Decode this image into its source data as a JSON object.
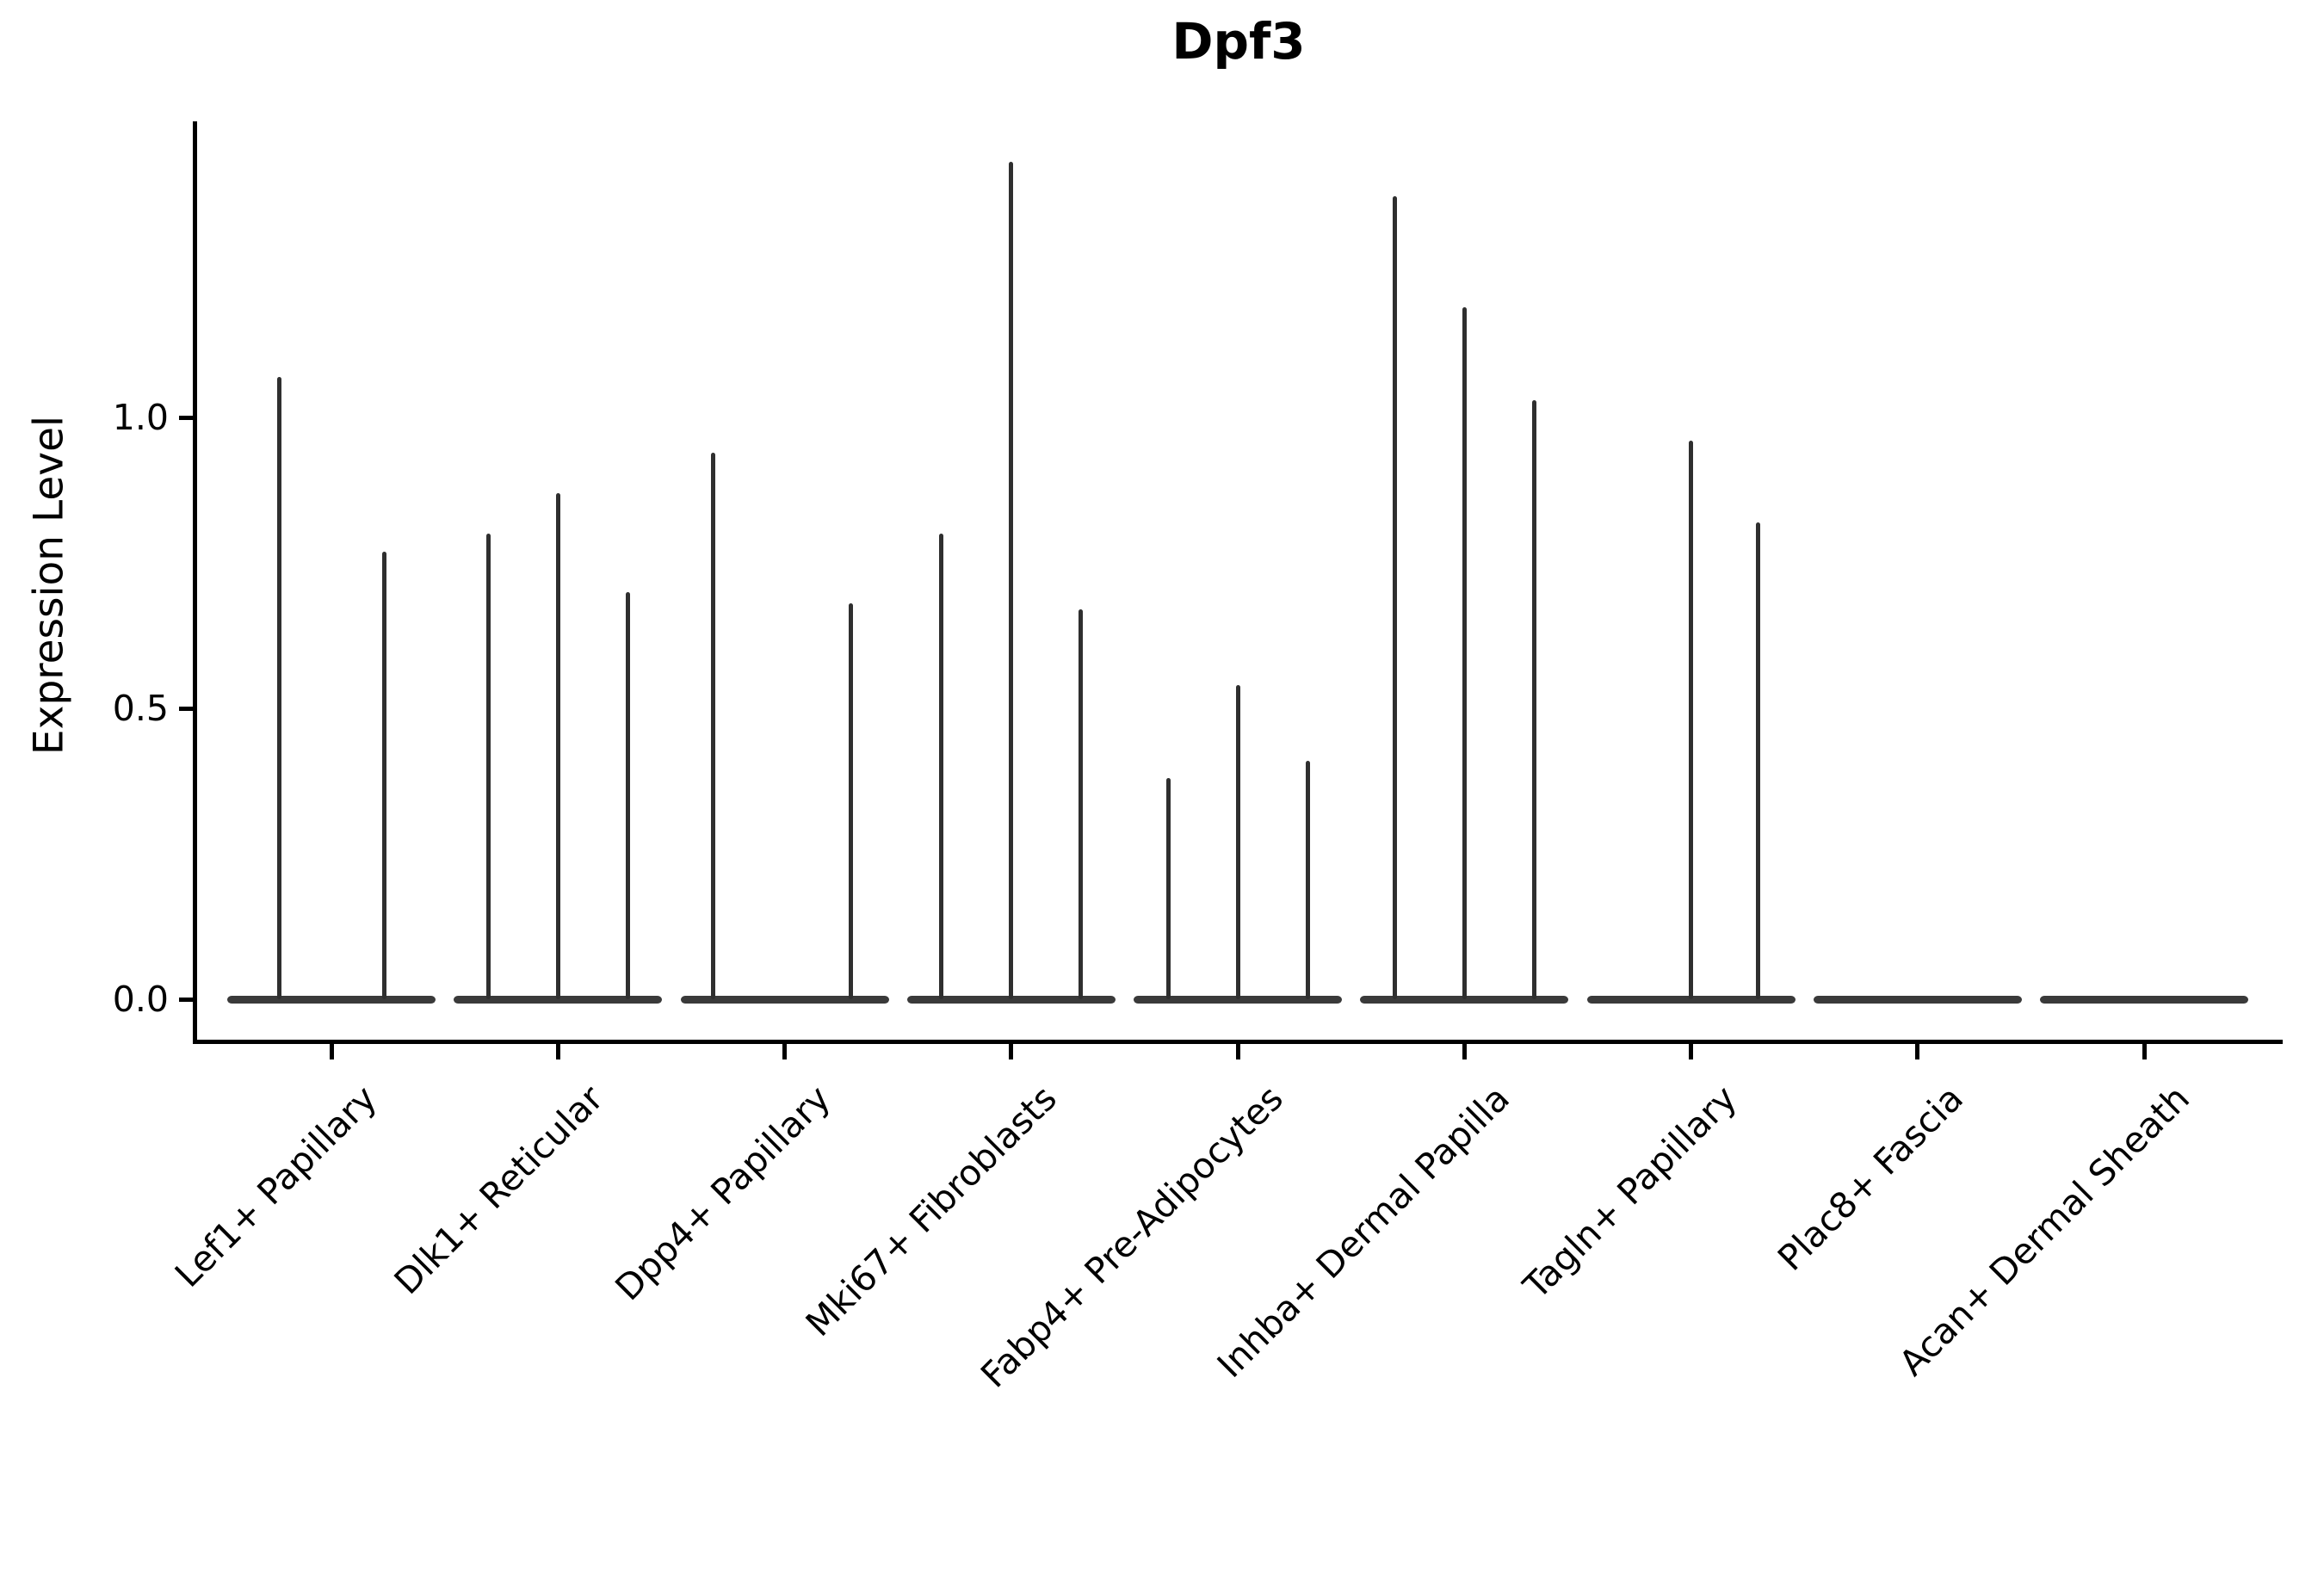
{
  "title": "Dpf3",
  "y_axis": {
    "label": "Expression Level",
    "ticks": [
      {
        "label": "0.0",
        "value": 0.0
      },
      {
        "label": "0.5",
        "value": 0.5
      },
      {
        "label": "1.0",
        "value": 1.0
      }
    ]
  },
  "style": {
    "spike_color": "#2f2f2f",
    "body_color": "#3a3a3a",
    "axis_color": "#000000",
    "background": "#ffffff"
  },
  "chart_data": {
    "type": "violin",
    "title": "Dpf3",
    "xlabel": "",
    "ylabel": "Expression Level",
    "ylim": [
      0,
      1.51
    ],
    "yticks": [
      0.0,
      0.5,
      1.0
    ],
    "grid": false,
    "legend": "none",
    "categories": [
      "Lef1+ Papillary",
      "Dlk1+ Reticular",
      "Dpp4+ Papillary",
      "Mki67+ Fibroblasts",
      "Fabp4+ Pre-Adipocytes",
      "Inhba+ Dermal Papilla",
      "Tagln+ Papillary",
      "Plac8+ Fascia",
      "Acan+ Dermal Sheath"
    ],
    "groups": [
      {
        "category": "Lef1+ Papillary",
        "violins": [
          {
            "dx": -61,
            "peak": 1.07
          },
          {
            "dx": 61,
            "peak": 0.77
          }
        ]
      },
      {
        "category": "Dlk1+ Reticular",
        "violins": [
          {
            "dx": -81,
            "peak": 0.8
          },
          {
            "dx": 0,
            "peak": 0.87
          },
          {
            "dx": 81,
            "peak": 0.7
          }
        ]
      },
      {
        "category": "Dpp4+ Papillary",
        "violins": [
          {
            "dx": -83,
            "peak": 0.94
          },
          {
            "dx": 0,
            "peak": 0.0
          },
          {
            "dx": 77,
            "peak": 0.68
          }
        ]
      },
      {
        "category": "Mki67+ Fibroblasts",
        "violins": [
          {
            "dx": -81,
            "peak": 0.8
          },
          {
            "dx": 0,
            "peak": 1.44
          },
          {
            "dx": 81,
            "peak": 0.67
          }
        ]
      },
      {
        "category": "Fabp4+ Pre-Adipocytes",
        "violins": [
          {
            "dx": -81,
            "peak": 0.38
          },
          {
            "dx": 0,
            "peak": 0.54
          },
          {
            "dx": 81,
            "peak": 0.41
          }
        ]
      },
      {
        "category": "Inhba+ Dermal Papilla",
        "violins": [
          {
            "dx": -81,
            "peak": 1.38
          },
          {
            "dx": 0,
            "peak": 1.19
          },
          {
            "dx": 81,
            "peak": 1.03
          }
        ]
      },
      {
        "category": "Tagln+ Papillary",
        "violins": [
          {
            "dx": -81,
            "peak": 0.0
          },
          {
            "dx": 0,
            "peak": 0.96
          },
          {
            "dx": 78,
            "peak": 0.82
          }
        ]
      },
      {
        "category": "Plac8+ Fascia",
        "violins": []
      },
      {
        "category": "Acan+ Dermal Sheath",
        "violins": []
      }
    ]
  }
}
